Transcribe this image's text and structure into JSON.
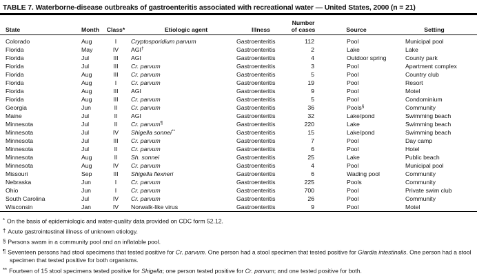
{
  "title": "TABLE 7. Waterborne-disease outbreaks of gastroenteritis associated with recreational water — United States, 2000 (n = 21)",
  "colors": {
    "text": "#111111",
    "background": "#ffffff",
    "rule": "#000000"
  },
  "table": {
    "headers": {
      "state": "State",
      "month": "Month",
      "class": "Class*",
      "agent": "Etiologic agent",
      "illness": "Illness",
      "cases_line1": "Number",
      "cases_line2": "of cases",
      "source": "Source",
      "setting": "Setting"
    },
    "rows": [
      {
        "state": "Colorado",
        "month": "Aug",
        "class": "I",
        "agent": "Cryptosporidium parvum",
        "agent_italic": true,
        "agent_sup": "",
        "illness": "Gastroenteritis",
        "cases": "112",
        "source": "Pool",
        "source_sup": "",
        "setting": "Municipal pool"
      },
      {
        "state": "Florida",
        "month": "May",
        "class": "IV",
        "agent": "AGI",
        "agent_italic": false,
        "agent_sup": "†",
        "illness": "Gastroenteritis",
        "cases": "2",
        "source": "Lake",
        "source_sup": "",
        "setting": "Lake"
      },
      {
        "state": "Florida",
        "month": "Jul",
        "class": "III",
        "agent": "AGI",
        "agent_italic": false,
        "agent_sup": "",
        "illness": "Gastroenteritis",
        "cases": "4",
        "source": "Outdoor spring",
        "source_sup": "",
        "setting": "County park"
      },
      {
        "state": "Florida",
        "month": "Jul",
        "class": "III",
        "agent": "Cr. parvum",
        "agent_italic": true,
        "agent_sup": "",
        "illness": "Gastroenteritis",
        "cases": "3",
        "source": "Pool",
        "source_sup": "",
        "setting": "Apartment complex"
      },
      {
        "state": "Florida",
        "month": "Aug",
        "class": "III",
        "agent": "Cr. parvum",
        "agent_italic": true,
        "agent_sup": "",
        "illness": "Gastroenteritis",
        "cases": "5",
        "source": "Pool",
        "source_sup": "",
        "setting": "Country club"
      },
      {
        "state": "Florida",
        "month": "Aug",
        "class": "I",
        "agent": "Cr. parvum",
        "agent_italic": true,
        "agent_sup": "",
        "illness": "Gastroenteritis",
        "cases": "19",
        "source": "Pool",
        "source_sup": "",
        "setting": "Resort"
      },
      {
        "state": "Florida",
        "month": "Aug",
        "class": "III",
        "agent": "AGI",
        "agent_italic": false,
        "agent_sup": "",
        "illness": "Gastroenteritis",
        "cases": "9",
        "source": "Pool",
        "source_sup": "",
        "setting": "Motel"
      },
      {
        "state": "Florida",
        "month": "Aug",
        "class": "III",
        "agent": "Cr. parvum",
        "agent_italic": true,
        "agent_sup": "",
        "illness": "Gastroenteritis",
        "cases": "5",
        "source": "Pool",
        "source_sup": "",
        "setting": "Condominium"
      },
      {
        "state": "Georgia",
        "month": "Jun",
        "class": "II",
        "agent": "Cr. parvum",
        "agent_italic": true,
        "agent_sup": "",
        "illness": "Gastroenteritis",
        "cases": "36",
        "source": "Pools",
        "source_sup": "§",
        "setting": "Community"
      },
      {
        "state": "Maine",
        "month": "Jul",
        "class": "II",
        "agent": "AGI",
        "agent_italic": false,
        "agent_sup": "",
        "illness": "Gastroenteritis",
        "cases": "32",
        "source": "Lake/pond",
        "source_sup": "",
        "setting": "Swimming beach"
      },
      {
        "state": "Minnesota",
        "month": "Jul",
        "class": "II",
        "agent": "Cr. parvum",
        "agent_italic": true,
        "agent_sup": "¶",
        "illness": "Gastroenteritis",
        "cases": "220",
        "source": "Lake",
        "source_sup": "",
        "setting": "Swimming beach"
      },
      {
        "state": "Minnesota",
        "month": "Jul",
        "class": "IV",
        "agent": "Shigella sonnei",
        "agent_italic": true,
        "agent_sup": "**",
        "illness": "Gastroenteritis",
        "cases": "15",
        "source": "Lake/pond",
        "source_sup": "",
        "setting": "Swimming beach"
      },
      {
        "state": "Minnesota",
        "month": "Jul",
        "class": "III",
        "agent": "Cr. parvum",
        "agent_italic": true,
        "agent_sup": "",
        "illness": "Gastroenteritis",
        "cases": "7",
        "source": "Pool",
        "source_sup": "",
        "setting": "Day camp"
      },
      {
        "state": "Minnesota",
        "month": "Jul",
        "class": "II",
        "agent": "Cr. parvum",
        "agent_italic": true,
        "agent_sup": "",
        "illness": "Gastroenteritis",
        "cases": "6",
        "source": "Pool",
        "source_sup": "",
        "setting": "Hotel"
      },
      {
        "state": "Minnesota",
        "month": "Aug",
        "class": "II",
        "agent": "Sh. sonnei",
        "agent_italic": true,
        "agent_sup": "",
        "illness": "Gastroenteritis",
        "cases": "25",
        "source": "Lake",
        "source_sup": "",
        "setting": "Public beach"
      },
      {
        "state": "Minnesota",
        "month": "Aug",
        "class": "IV",
        "agent": "Cr. parvum",
        "agent_italic": true,
        "agent_sup": "",
        "illness": "Gastroenteritis",
        "cases": "4",
        "source": "Pool",
        "source_sup": "",
        "setting": "Municipal pool"
      },
      {
        "state": "Missouri",
        "month": "Sep",
        "class": "III",
        "agent": "Shigella flexneri",
        "agent_italic": true,
        "agent_sup": "",
        "illness": "Gastroenteritis",
        "cases": "6",
        "source": "Wading pool",
        "source_sup": "",
        "setting": "Community"
      },
      {
        "state": "Nebraska",
        "month": "Jun",
        "class": "I",
        "agent": "Cr. parvum",
        "agent_italic": true,
        "agent_sup": "",
        "illness": "Gastroenteritis",
        "cases": "225",
        "source": "Pools",
        "source_sup": "",
        "setting": "Community"
      },
      {
        "state": "Ohio",
        "month": "Jun",
        "class": "I",
        "agent": "Cr. parvum",
        "agent_italic": true,
        "agent_sup": "",
        "illness": "Gastroenteritis",
        "cases": "700",
        "source": "Pool",
        "source_sup": "",
        "setting": "Private swim club"
      },
      {
        "state": "South Carolina",
        "month": "Jul",
        "class": "IV",
        "agent": "Cr. parvum",
        "agent_italic": true,
        "agent_sup": "",
        "illness": "Gastroenteritis",
        "cases": "26",
        "source": "Pool",
        "source_sup": "",
        "setting": "Community"
      },
      {
        "state": "Wisconsin",
        "month": "Jan",
        "class": "IV",
        "agent": "Norwalk-like virus",
        "agent_italic": false,
        "agent_sup": "",
        "illness": "Gastroenteritis",
        "cases": "9",
        "source": "Pool",
        "source_sup": "",
        "setting": "Motel"
      }
    ]
  },
  "footnotes": [
    {
      "marker": "*",
      "parts": [
        {
          "text": "On the basis of epidemiologic and water-quality data provided on CDC form 52.12.",
          "italic": false
        }
      ]
    },
    {
      "marker": "†",
      "parts": [
        {
          "text": "Acute gastrointestinal illness of unknown etiology.",
          "italic": false
        }
      ]
    },
    {
      "marker": "§",
      "parts": [
        {
          "text": "Persons swam in a community pool and an inflatable pool.",
          "italic": false
        }
      ]
    },
    {
      "marker": "¶",
      "parts": [
        {
          "text": "Seventeen persons had stool specimens that tested positive for ",
          "italic": false
        },
        {
          "text": "Cr. parvum",
          "italic": true
        },
        {
          "text": ". One person had a stool specimen that tested positive for ",
          "italic": false
        },
        {
          "text": "Giardia intestinalis",
          "italic": true
        },
        {
          "text": ". One person had a stool specimen that tested positive for both organisms.",
          "italic": false
        }
      ]
    },
    {
      "marker": "**",
      "parts": [
        {
          "text": "Fourteen of 15 stool specimens tested positive for ",
          "italic": false
        },
        {
          "text": "Shigella",
          "italic": true
        },
        {
          "text": "; one person tested positive for ",
          "italic": false
        },
        {
          "text": "Cr. parvum",
          "italic": true
        },
        {
          "text": "; and one tested positive for both.",
          "italic": false
        }
      ]
    }
  ]
}
